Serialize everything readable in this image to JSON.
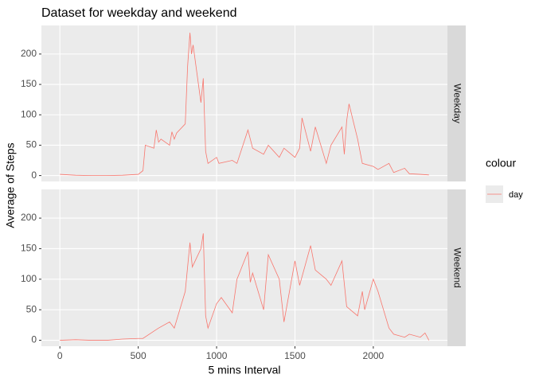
{
  "chart_data": {
    "type": "line",
    "title": "Dataset for weekday and weekend",
    "xlabel": "5 mins Interval",
    "ylabel": "Average of Steps",
    "legend_title": "colour",
    "series_name": "day",
    "color": "#f8766d",
    "xlim": [
      -118,
      2473
    ],
    "ylim": [
      -9.7,
      247
    ],
    "xticks": [
      0,
      500,
      1000,
      1500,
      2000
    ],
    "yticks": [
      0,
      50,
      100,
      150,
      200
    ],
    "grid": true,
    "panels": [
      {
        "label": "Weekday",
        "x": [
          0,
          100,
          200,
          300,
          400,
          500,
          530,
          545,
          600,
          615,
          630,
          645,
          700,
          715,
          730,
          745,
          800,
          815,
          830,
          840,
          850,
          900,
          915,
          930,
          945,
          1000,
          1015,
          1100,
          1130,
          1200,
          1215,
          1230,
          1300,
          1330,
          1400,
          1430,
          1500,
          1530,
          1545,
          1600,
          1630,
          1700,
          1730,
          1800,
          1815,
          1830,
          1845,
          1900,
          1930,
          2000,
          2030,
          2100,
          2130,
          2200,
          2230,
          2300,
          2355
        ],
        "values": [
          2,
          0.5,
          0,
          0,
          0.5,
          2,
          8,
          50,
          45,
          75,
          55,
          60,
          50,
          72,
          60,
          70,
          85,
          180,
          235,
          200,
          215,
          120,
          160,
          40,
          20,
          30,
          20,
          25,
          20,
          75,
          60,
          45,
          35,
          50,
          30,
          45,
          30,
          45,
          95,
          40,
          80,
          20,
          50,
          80,
          35,
          90,
          118,
          60,
          20,
          15,
          10,
          20,
          5,
          12,
          3,
          2,
          1
        ]
      },
      {
        "label": "Weekend",
        "x": [
          0,
          100,
          200,
          300,
          400,
          500,
          530,
          600,
          630,
          700,
          730,
          800,
          830,
          845,
          900,
          915,
          930,
          945,
          1000,
          1030,
          1100,
          1130,
          1200,
          1215,
          1230,
          1300,
          1330,
          1400,
          1430,
          1500,
          1530,
          1600,
          1630,
          1700,
          1730,
          1800,
          1830,
          1900,
          1930,
          1945,
          2000,
          2030,
          2100,
          2130,
          2200,
          2230,
          2300,
          2330,
          2355
        ],
        "values": [
          0,
          1,
          0,
          0,
          2,
          3,
          3,
          15,
          20,
          30,
          20,
          80,
          160,
          120,
          150,
          175,
          40,
          20,
          60,
          70,
          45,
          100,
          145,
          95,
          110,
          50,
          140,
          100,
          30,
          130,
          90,
          155,
          115,
          100,
          90,
          130,
          55,
          40,
          80,
          50,
          100,
          80,
          20,
          10,
          5,
          10,
          5,
          12,
          0
        ]
      }
    ]
  }
}
